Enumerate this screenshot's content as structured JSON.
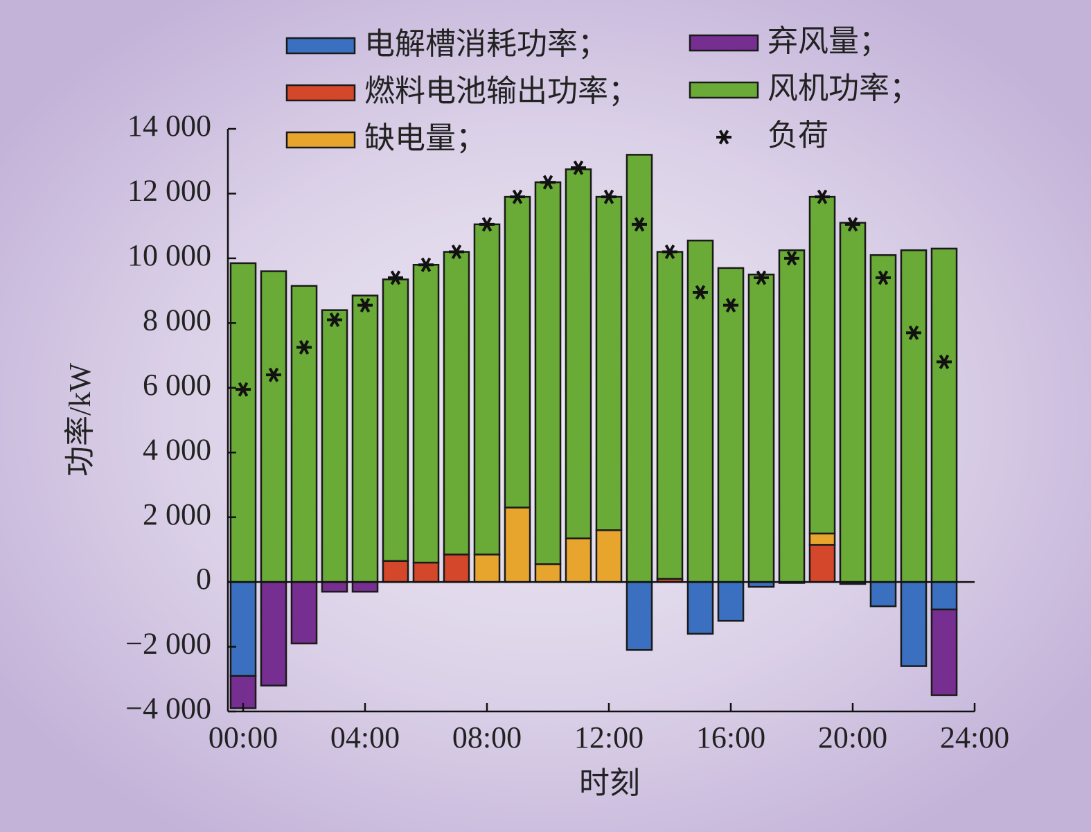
{
  "chart_data": {
    "type": "bar",
    "x_label": "时刻",
    "y_label": "功率/kW",
    "x": [
      0,
      1,
      2,
      3,
      4,
      5,
      6,
      7,
      8,
      9,
      10,
      11,
      12,
      13,
      14,
      15,
      16,
      17,
      18,
      19,
      20,
      21,
      22,
      23
    ],
    "xlim": [
      -0.5,
      24
    ],
    "xticks": [
      {
        "value": 0,
        "label": "00:00"
      },
      {
        "value": 4,
        "label": "04:00"
      },
      {
        "value": 8,
        "label": "08:00"
      },
      {
        "value": 12,
        "label": "12:00"
      },
      {
        "value": 16,
        "label": "16:00"
      },
      {
        "value": 20,
        "label": "20:00"
      },
      {
        "value": 24,
        "label": "24:00"
      }
    ],
    "ylim": [
      -4000,
      14000
    ],
    "yticks": [
      {
        "value": -4000,
        "label": "−4 000"
      },
      {
        "value": -2000,
        "label": "−2 000"
      },
      0,
      {
        "value": 2000,
        "label": "2 000"
      },
      {
        "value": 4000,
        "label": "4 000"
      },
      {
        "value": 6000,
        "label": "6 000"
      },
      {
        "value": 8000,
        "label": "8 000"
      },
      {
        "value": 10000,
        "label": "10 000"
      },
      {
        "value": 12000,
        "label": "12 000"
      },
      {
        "value": 14000,
        "label": "14 000"
      }
    ],
    "series": [
      {
        "name": "电解槽消耗功率；",
        "color": "#3a70bf",
        "values": [
          -2900,
          0,
          0,
          0,
          0,
          0,
          0,
          0,
          0,
          0,
          0,
          0,
          0,
          -2100,
          0,
          -1600,
          -1200,
          -150,
          -30,
          0,
          -60,
          -750,
          -2600,
          -850
        ]
      },
      {
        "name": "燃料电池输出功率；",
        "color": "#d4472a",
        "values": [
          0,
          0,
          0,
          0,
          0,
          650,
          600,
          850,
          0,
          0,
          0,
          0,
          0,
          0,
          100,
          0,
          0,
          0,
          0,
          1150,
          0,
          0,
          0,
          0
        ]
      },
      {
        "name": "缺电量；",
        "color": "#e8a52e",
        "values": [
          0,
          0,
          0,
          0,
          0,
          0,
          0,
          0,
          850,
          2300,
          550,
          1350,
          1600,
          0,
          0,
          0,
          0,
          0,
          0,
          350,
          0,
          0,
          0,
          0
        ]
      },
      {
        "name": "弃风量；",
        "color": "#772e91",
        "values": [
          -1000,
          -3200,
          -1900,
          -300,
          -300,
          0,
          0,
          0,
          0,
          0,
          0,
          0,
          0,
          0,
          0,
          0,
          0,
          0,
          0,
          0,
          0,
          0,
          0,
          -2650
        ]
      },
      {
        "name": "风机功率；",
        "color": "#6aaa36",
        "values": [
          9850,
          9600,
          9150,
          8400,
          8850,
          8700,
          9200,
          9350,
          10200,
          9600,
          11800,
          11400,
          10300,
          13200,
          10100,
          10550,
          9700,
          9500,
          10250,
          10400,
          11100,
          10100,
          10250,
          10300
        ]
      },
      {
        "name": "负荷",
        "type": "scatter",
        "color": "#111111",
        "values": [
          5950,
          6400,
          7250,
          8100,
          8550,
          9400,
          9800,
          10200,
          11050,
          11900,
          12350,
          12800,
          11900,
          11050,
          10200,
          8950,
          8550,
          9400,
          10000,
          11900,
          11050,
          9400,
          7700,
          6800
        ]
      }
    ]
  }
}
